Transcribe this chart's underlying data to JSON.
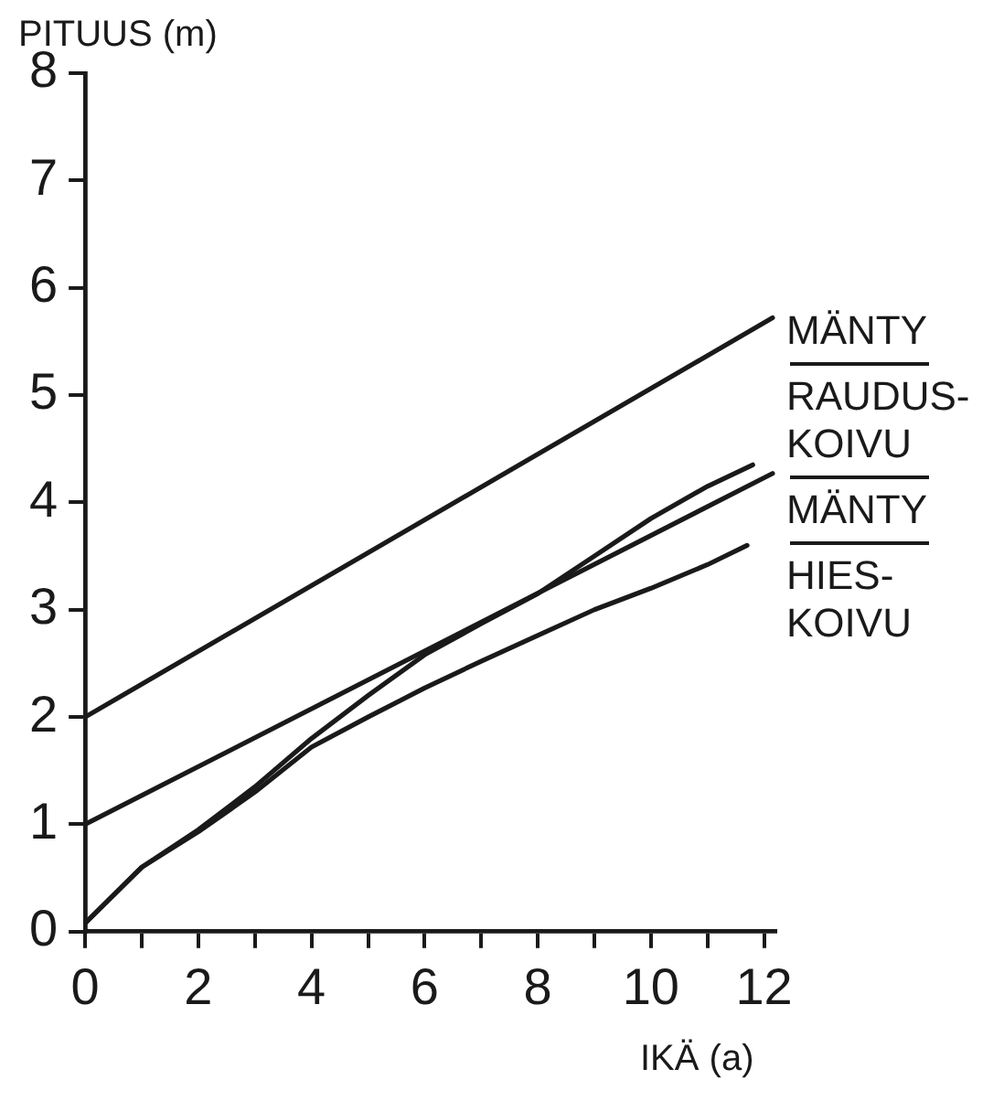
{
  "chart_data": {
    "type": "line",
    "xlabel": "IKÄ (a)",
    "ylabel": "PITUUS (m)",
    "xlim": [
      0,
      12.2
    ],
    "ylim": [
      0,
      8
    ],
    "xticks": [
      0,
      {
        "value": 1,
        "label": null
      },
      2,
      {
        "value": 3,
        "label": null
      },
      4,
      {
        "value": 5,
        "label": null
      },
      6,
      {
        "value": 7,
        "label": null
      },
      8,
      {
        "value": 9,
        "label": null
      },
      10,
      {
        "value": 11,
        "label": null
      },
      12
    ],
    "yticks": [
      0,
      1,
      2,
      3,
      4,
      5,
      6,
      7,
      8
    ],
    "grid": false,
    "legend": false,
    "marker": "none",
    "line_style": "solid",
    "series": [
      {
        "color": "#1a1a1a",
        "x": [
          0,
          12.15
        ],
        "values": [
          2.0,
          5.72
        ]
      },
      {
        "color": "#1a1a1a",
        "x": [
          0,
          12.15
        ],
        "values": [
          1.0,
          4.27
        ]
      },
      {
        "color": "#1a1a1a",
        "x": [
          0,
          1,
          2,
          3,
          4,
          5,
          6,
          7,
          8,
          9,
          10,
          11,
          11.8
        ],
        "values": [
          0.08,
          0.6,
          0.95,
          1.35,
          1.8,
          2.2,
          2.58,
          2.87,
          3.15,
          3.5,
          3.85,
          4.15,
          4.35
        ]
      },
      {
        "color": "#1a1a1a",
        "x": [
          0,
          1,
          2,
          3,
          4,
          5,
          6,
          7,
          8,
          9,
          10,
          11,
          11.7
        ],
        "values": [
          0.08,
          0.6,
          0.93,
          1.3,
          1.72,
          2.0,
          2.27,
          2.52,
          2.76,
          3.0,
          3.2,
          3.42,
          3.6
        ]
      }
    ],
    "annotations": [
      "MÄNTY",
      "RAUDUS-KOIVU",
      "MÄNTY",
      "HIES-KOIVU"
    ]
  }
}
